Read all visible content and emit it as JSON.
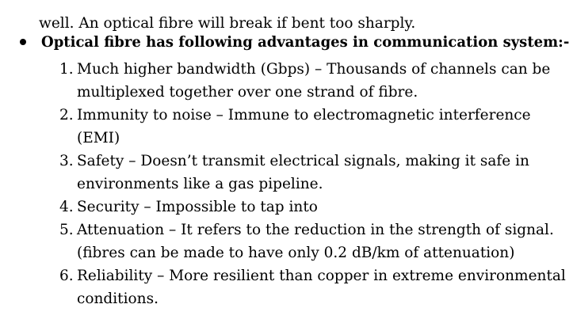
{
  "document": {
    "intro_line": "well. An optical fibre will break if bent too sharply.",
    "heading": "Optical fibre has following advantages in communication system:-",
    "items": [
      {
        "number": "1.",
        "lines": [
          "Much higher bandwidth (Gbps) – Thousands of channels can be",
          "multiplexed together over one strand of fibre."
        ]
      },
      {
        "number": "2.",
        "lines": [
          "Immunity to noise – Immune to electromagnetic  interference",
          "(EMI)"
        ]
      },
      {
        "number": "3.",
        "lines": [
          "Safety  – Doesn’t transmit electrical signals, making it safe  in",
          "environments like a gas pipeline."
        ]
      },
      {
        "number": "4.",
        "lines": [
          "Security – Impossible to tap into"
        ]
      },
      {
        "number": "5.",
        "lines": [
          "Attenuation – It refers to the reduction in the strength of signal.",
          "(fibres can be made to have only 0.2 dB/km of attenuation)"
        ]
      },
      {
        "number": "6.",
        "lines": [
          "Reliability – More resilient than copper in extreme environmental",
          "conditions."
        ]
      }
    ]
  }
}
